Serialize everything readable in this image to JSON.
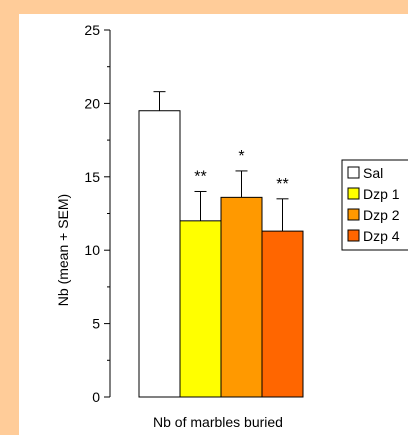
{
  "chart_data": {
    "type": "bar",
    "categories": [
      "Sal",
      "Dzp 1",
      "Dzp 2",
      "Dzp 4"
    ],
    "values": [
      19.5,
      12.0,
      13.6,
      11.3
    ],
    "errors": [
      1.3,
      2.0,
      1.8,
      2.2
    ],
    "significance": [
      "",
      "**",
      "*",
      "**"
    ],
    "colors": [
      "#ffffff",
      "#ffff00",
      "#ff9900",
      "#ff6600"
    ],
    "legend": [
      "Sal",
      "Dzp 1",
      "Dzp 2",
      "Dzp 4"
    ],
    "legend_position": "right",
    "title": "",
    "xlabel": "Nb of marbles buried",
    "ylabel": "Nb (mean + SEM)",
    "ylim": [
      0,
      25
    ],
    "yticks": [
      "0",
      "5",
      "10",
      "15",
      "20",
      "25"
    ],
    "grid": false
  }
}
